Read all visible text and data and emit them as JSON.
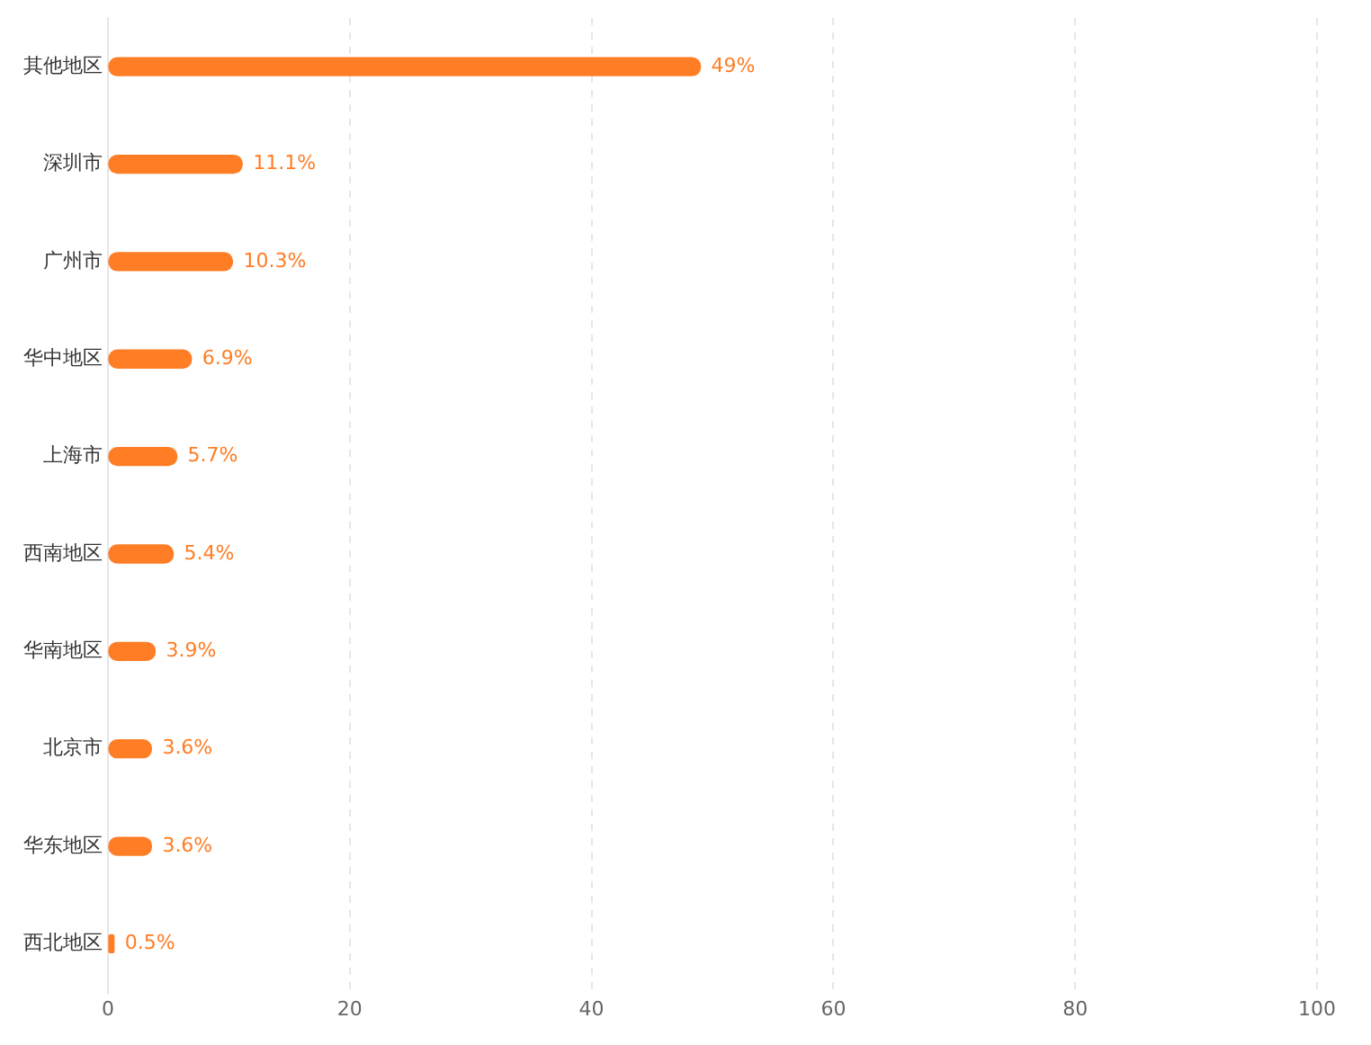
{
  "chart_data": {
    "type": "bar",
    "orientation": "horizontal",
    "categories": [
      "其他地区",
      "深圳市",
      "广州市",
      "华中地区",
      "上海市",
      "西南地区",
      "华南地区",
      "北京市",
      "华东地区",
      "西北地区"
    ],
    "values": [
      49,
      11.1,
      10.3,
      6.9,
      5.7,
      5.4,
      3.9,
      3.6,
      3.6,
      0.5
    ],
    "value_labels": [
      "49%",
      "11.1%",
      "10.3%",
      "6.9%",
      "5.7%",
      "5.4%",
      "3.9%",
      "3.6%",
      "3.6%",
      "0.5%"
    ],
    "color": "#ff7d24",
    "xlim": [
      0,
      100
    ],
    "xticks": [
      0,
      20,
      40,
      60,
      80,
      100
    ],
    "grid": "x",
    "legend": false
  }
}
